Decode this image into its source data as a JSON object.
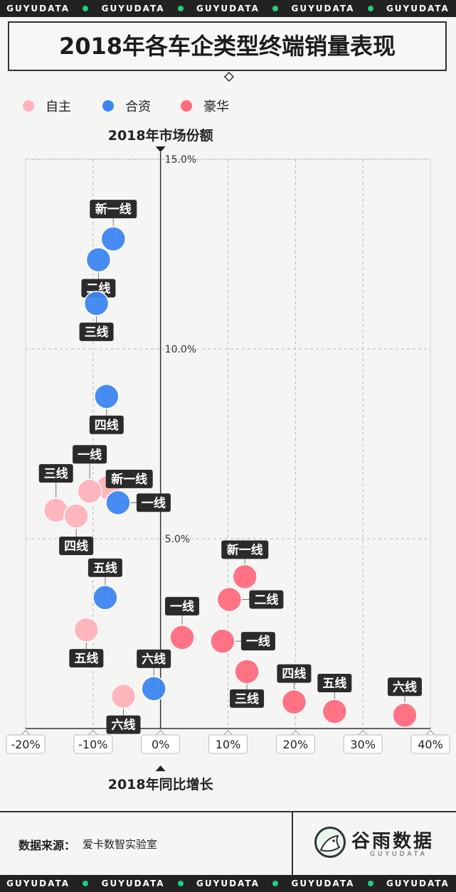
{
  "band_text": "GUYUDATA",
  "title": "2018年各车企类型终端销量表现",
  "footer": {
    "source_label": "数据来源：",
    "source_value": "爱卡数智实验室",
    "logo_main": "谷雨数据",
    "logo_sub": "GUYUDATA"
  },
  "colors": {
    "自主": "#ffb3ba",
    "合资": "#3d86f2",
    "豪华": "#ff6b7e",
    "label_bg": "#2b2b2b",
    "accent_green": "#1fd07c"
  },
  "chart_data": {
    "type": "scatter",
    "title": "2018年各车企类型终端销量表现",
    "xlabel": "2018年同比增长",
    "ylabel": "2018年市场份额",
    "xlim": [
      -20,
      40
    ],
    "ylim": [
      0,
      15
    ],
    "x_ticks": [
      "-20%",
      "-10%",
      "0%",
      "10%",
      "20%",
      "30%",
      "40%"
    ],
    "y_ticks": [
      "5.0%",
      "10.0%",
      "15.0%"
    ],
    "grid": true,
    "legend": "top-left",
    "series": [
      {
        "name": "自主",
        "points": [
          {
            "label": "新一线",
            "x": -7.8,
            "y": 6.35
          },
          {
            "label": "一线",
            "x": -10.5,
            "y": 6.25
          },
          {
            "label": "三线",
            "x": -15.5,
            "y": 5.75
          },
          {
            "label": "四线",
            "x": -12.5,
            "y": 5.6
          },
          {
            "label": "五线",
            "x": -11.0,
            "y": 2.6
          },
          {
            "label": "六线",
            "x": -5.5,
            "y": 0.85
          }
        ]
      },
      {
        "name": "合资",
        "points": [
          {
            "label": "新一线",
            "x": -7.0,
            "y": 12.9
          },
          {
            "label": "二线",
            "x": -9.2,
            "y": 12.35
          },
          {
            "label": "三线",
            "x": -9.5,
            "y": 11.2
          },
          {
            "label": "四线",
            "x": -8.0,
            "y": 8.75
          },
          {
            "label": "一线",
            "x": -6.3,
            "y": 5.95
          },
          {
            "label": "五线",
            "x": -8.2,
            "y": 3.45
          },
          {
            "label": "六线",
            "x": -1.0,
            "y": 1.05
          }
        ]
      },
      {
        "name": "豪华",
        "points": [
          {
            "label": "新一线",
            "x": 12.5,
            "y": 4.0
          },
          {
            "label": "二线",
            "x": 10.2,
            "y": 3.4
          },
          {
            "label": "一线",
            "x": 9.2,
            "y": 2.3
          },
          {
            "label": "一线",
            "x": 3.2,
            "y": 2.4
          },
          {
            "label": "三线",
            "x": 12.8,
            "y": 1.5
          },
          {
            "label": "四线",
            "x": 19.8,
            "y": 0.7
          },
          {
            "label": "五线",
            "x": 25.8,
            "y": 0.45
          },
          {
            "label": "六线",
            "x": 36.2,
            "y": 0.35
          }
        ]
      }
    ]
  }
}
